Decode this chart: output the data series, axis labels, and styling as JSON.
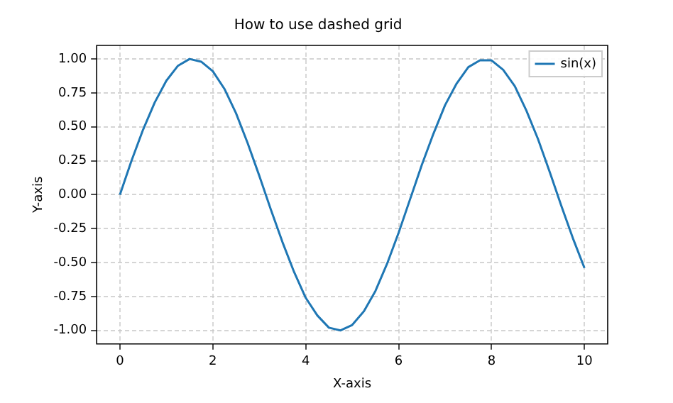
{
  "chart_data": {
    "type": "line",
    "title": "How to use dashed grid",
    "xlabel": "X-axis",
    "ylabel": "Y-axis",
    "x": [
      0,
      0.25,
      0.5,
      0.75,
      1,
      1.25,
      1.5,
      1.75,
      2,
      2.25,
      2.5,
      2.75,
      3,
      3.25,
      3.5,
      3.75,
      4,
      4.25,
      4.5,
      4.75,
      5,
      5.25,
      5.5,
      5.75,
      6,
      6.25,
      6.5,
      6.75,
      7,
      7.25,
      7.5,
      7.75,
      8,
      8.25,
      8.5,
      8.75,
      9,
      9.25,
      9.5,
      9.75,
      10
    ],
    "series": [
      {
        "name": "sin(x)",
        "color": "#1f77b4",
        "values": [
          0,
          0.25,
          0.48,
          0.68,
          0.84,
          0.95,
          1.0,
          0.98,
          0.91,
          0.78,
          0.6,
          0.38,
          0.14,
          -0.11,
          -0.35,
          -0.57,
          -0.76,
          -0.89,
          -0.98,
          -1.0,
          -0.96,
          -0.86,
          -0.71,
          -0.51,
          -0.28,
          -0.03,
          0.22,
          0.45,
          0.66,
          0.82,
          0.94,
          0.99,
          0.99,
          0.92,
          0.8,
          0.62,
          0.41,
          0.17,
          -0.08,
          -0.32,
          -0.54
        ]
      }
    ],
    "xlim": [
      -0.5,
      10.5
    ],
    "ylim": [
      -1.1,
      1.1
    ],
    "xticks": [
      0,
      2,
      4,
      6,
      8,
      10
    ],
    "yticks": [
      {
        "value": -1,
        "label": "-1.00"
      },
      {
        "value": -0.75,
        "label": "-0.75"
      },
      {
        "value": -0.5,
        "label": "-0.50"
      },
      {
        "value": -0.25,
        "label": "-0.25"
      },
      {
        "value": 0,
        "label": "0.00"
      },
      {
        "value": 0.25,
        "label": "0.25"
      },
      {
        "value": 0.5,
        "label": "0.50"
      },
      {
        "value": 0.75,
        "label": "0.75"
      },
      {
        "value": 1,
        "label": "1.00"
      }
    ],
    "grid": true,
    "line_style": "solid",
    "marker": "none",
    "legend": "top right"
  }
}
